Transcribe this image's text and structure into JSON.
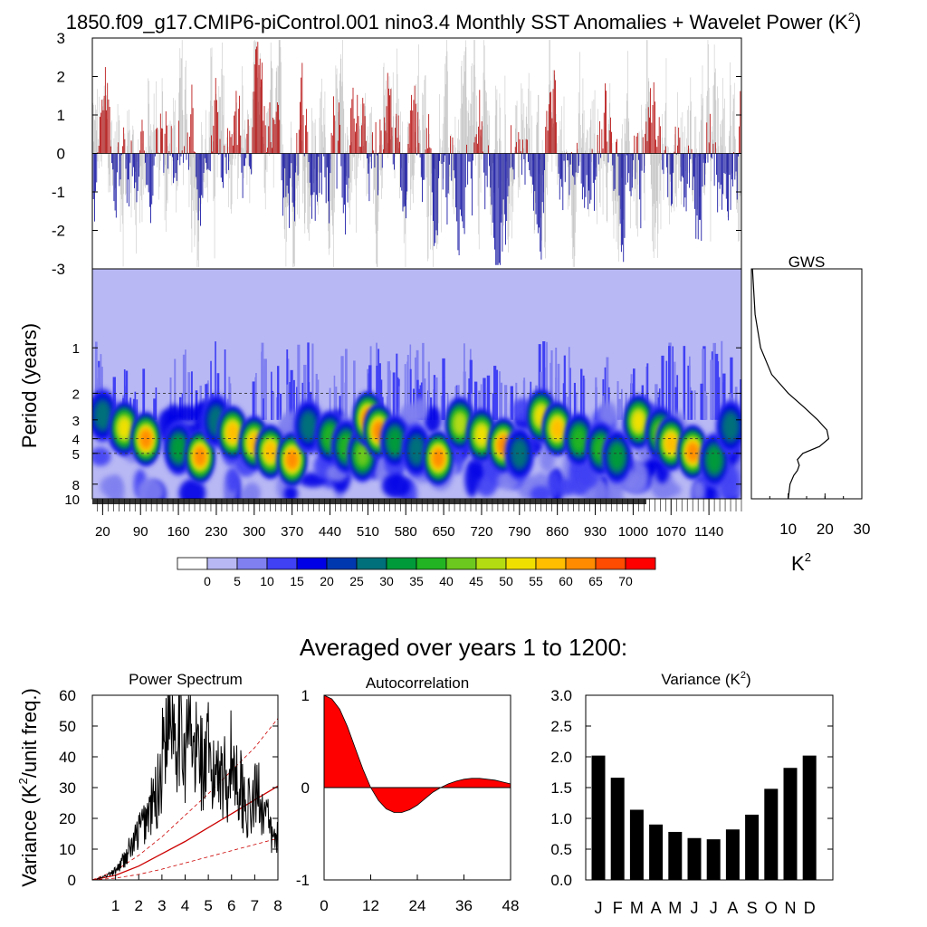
{
  "main_title": "1850.f09_g17.CMIP6-piControl.001 nino3.4 Monthly SST Anomalies + Wavelet Power (K",
  "main_title_sup": "2",
  "main_title_end": ")",
  "colors": {
    "positive": "#b30000",
    "negative": "#00009c",
    "raw": "#c8c8c8",
    "wavelet_bg": "#b8b8f4",
    "acf_pos": "#ff0000",
    "acf_neg": "#0000ff",
    "red_noise": "#cc0000"
  },
  "chart_data": [
    {
      "type": "bar",
      "name": "anomaly-timeseries",
      "ylim": [
        -3,
        3
      ],
      "y_ticks": [
        "3",
        "2",
        "1",
        "0",
        "-1",
        "-2",
        "-3"
      ],
      "y_tick_values": [
        3,
        2,
        1,
        0,
        -1,
        -2,
        -3
      ],
      "x_range": [
        1,
        1200
      ]
    },
    {
      "type": "heatmap",
      "name": "wavelet-power",
      "ylabel": "Period (years)",
      "y_scale": "log",
      "y_ticks": [
        "1",
        "2",
        "3",
        "4",
        "5",
        "8",
        "10"
      ],
      "y_tick_values": [
        1,
        2,
        3,
        4,
        5,
        8,
        10
      ],
      "y_range_years": [
        0.3,
        10
      ],
      "x_ticks": [
        "20",
        "90",
        "160",
        "230",
        "300",
        "370",
        "440",
        "510",
        "580",
        "650",
        "720",
        "790",
        "860",
        "930",
        "1000",
        "1070",
        "1140"
      ],
      "x_tick_values": [
        20,
        90,
        160,
        230,
        300,
        370,
        440,
        510,
        580,
        650,
        720,
        790,
        860,
        930,
        1000,
        1070,
        1140
      ],
      "x_range": [
        1,
        1200
      ],
      "dashed_periods": [
        2,
        4,
        5
      ],
      "peak_columns_year": [
        20,
        60,
        100,
        160,
        200,
        230,
        260,
        300,
        330,
        370,
        400,
        440,
        470,
        500,
        510,
        530,
        560,
        600,
        640,
        680,
        720,
        760,
        790,
        830,
        860,
        900,
        940,
        970,
        1010,
        1050,
        1070,
        1110,
        1150,
        1180
      ]
    },
    {
      "type": "line",
      "name": "global-wavelet-spectrum",
      "title": "GWS",
      "xlabel": "K",
      "xlabel_sup": "2",
      "x_ticks": [
        "10",
        "20",
        "30"
      ],
      "x_tick_values": [
        10,
        20,
        30
      ],
      "xlim": [
        0,
        30
      ],
      "y_scale": "log",
      "y_range_years": [
        0.3,
        10
      ],
      "points": [
        {
          "period": 0.3,
          "power": 0.3
        },
        {
          "period": 0.6,
          "power": 1.0
        },
        {
          "period": 1.0,
          "power": 2.5
        },
        {
          "period": 1.5,
          "power": 5.5
        },
        {
          "period": 2.0,
          "power": 10.0
        },
        {
          "period": 2.5,
          "power": 14.5
        },
        {
          "period": 3.0,
          "power": 18.0
        },
        {
          "period": 3.5,
          "power": 20.5
        },
        {
          "period": 4.0,
          "power": 21.0
        },
        {
          "period": 4.5,
          "power": 18.5
        },
        {
          "period": 5.0,
          "power": 14.0
        },
        {
          "period": 5.5,
          "power": 12.5
        },
        {
          "period": 6.0,
          "power": 13.0
        },
        {
          "period": 6.5,
          "power": 12.5
        },
        {
          "period": 7.0,
          "power": 11.5
        },
        {
          "period": 8.0,
          "power": 10.5
        },
        {
          "period": 10.0,
          "power": 10.0
        }
      ]
    }
  ],
  "colorbar": {
    "labels": [
      "0",
      "5",
      "10",
      "15",
      "20",
      "25",
      "30",
      "35",
      "40",
      "45",
      "50",
      "55",
      "60",
      "65",
      "70"
    ],
    "colors": [
      "#ffffff",
      "#b8b8f4",
      "#8080f0",
      "#4040f4",
      "#0000e6",
      "#0038b0",
      "#00707a",
      "#009a3a",
      "#22b422",
      "#6cc81e",
      "#b4dc12",
      "#f0e000",
      "#ffbe00",
      "#ff8c00",
      "#ff4c00",
      "#ff0000"
    ]
  },
  "averaged_title": "Averaged over years 1 to 1200:",
  "power_spectrum": {
    "title": "Power Spectrum",
    "ylabel_pre": "Variance (K",
    "ylabel_sup": "2",
    "ylabel_post": "/unit freq.)",
    "y_ticks": [
      "0",
      "10",
      "20",
      "30",
      "40",
      "50",
      "60"
    ],
    "y_tick_values": [
      0,
      10,
      20,
      30,
      40,
      50,
      60
    ],
    "ylim": [
      0,
      60
    ],
    "x_ticks": [
      "1",
      "2",
      "3",
      "4",
      "5",
      "6",
      "7",
      "8"
    ],
    "x_tick_values": [
      1,
      2,
      3,
      4,
      5,
      6,
      7,
      8
    ],
    "xlim": [
      0,
      8
    ],
    "spectrum_x": [
      0.2,
      0.5,
      0.8,
      1.0,
      1.2,
      1.4,
      1.6,
      1.8,
      2.0,
      2.2,
      2.4,
      2.6,
      2.8,
      3.0,
      3.2,
      3.4,
      3.6,
      3.8,
      4.0,
      4.2,
      4.4,
      4.6,
      4.8,
      5.0,
      5.2,
      5.4,
      5.6,
      5.8,
      6.0,
      6.2,
      6.4,
      6.6,
      6.8,
      7.0,
      7.2,
      7.4,
      7.6,
      7.8,
      8.0
    ],
    "spectrum_y": [
      0.3,
      1,
      2,
      3,
      5,
      7,
      10,
      12,
      16,
      18,
      22,
      24,
      28,
      38,
      55,
      60,
      50,
      56,
      42,
      50,
      38,
      46,
      34,
      40,
      30,
      42,
      35,
      32,
      40,
      34,
      30,
      25,
      22,
      26,
      30,
      22,
      18,
      12,
      16
    ],
    "red_noise_x": [
      0,
      1,
      2,
      3,
      4,
      5,
      6,
      7,
      8
    ],
    "red_noise_mean": [
      0,
      1.5,
      4.5,
      8.5,
      12.5,
      17,
      21.5,
      26,
      30.5
    ],
    "red_noise_upper": [
      0,
      3,
      8,
      14,
      21,
      28,
      35.5,
      43,
      52.5
    ],
    "red_noise_lower": [
      0,
      0.6,
      1.8,
      3.5,
      5.5,
      7.5,
      9.5,
      11.5,
      13.5
    ]
  },
  "autocorrelation": {
    "title": "Autocorrelation",
    "y_ticks": [
      "1",
      "0",
      "-1"
    ],
    "y_tick_values": [
      1,
      0,
      -1
    ],
    "ylim": [
      -1,
      1
    ],
    "x_ticks": [
      "0",
      "12",
      "24",
      "36",
      "48"
    ],
    "x_tick_values": [
      0,
      12,
      24,
      36,
      48
    ],
    "xlim": [
      0,
      48
    ],
    "lags": [
      0,
      2,
      4,
      6,
      8,
      10,
      12,
      14,
      16,
      18,
      20,
      22,
      24,
      26,
      28,
      30,
      32,
      34,
      36,
      38,
      40,
      42,
      44,
      46,
      48
    ],
    "values": [
      1.0,
      0.96,
      0.85,
      0.66,
      0.43,
      0.2,
      0.0,
      -0.14,
      -0.23,
      -0.27,
      -0.27,
      -0.24,
      -0.19,
      -0.12,
      -0.05,
      0.0,
      0.04,
      0.07,
      0.09,
      0.1,
      0.1,
      0.09,
      0.08,
      0.06,
      0.04
    ]
  },
  "variance": {
    "title_pre": "Variance (K",
    "title_sup": "2",
    "title_post": ")",
    "y_ticks": [
      "0.0",
      "0.5",
      "1.0",
      "1.5",
      "2.0",
      "2.5",
      "3.0"
    ],
    "y_tick_values": [
      0,
      0.5,
      1,
      1.5,
      2,
      2.5,
      3
    ],
    "ylim": [
      0,
      3
    ],
    "categories": [
      "J",
      "F",
      "M",
      "A",
      "M",
      "J",
      "J",
      "A",
      "S",
      "O",
      "N",
      "D"
    ],
    "values": [
      2.02,
      1.66,
      1.14,
      0.9,
      0.78,
      0.68,
      0.66,
      0.82,
      1.06,
      1.48,
      1.82,
      2.02
    ]
  }
}
